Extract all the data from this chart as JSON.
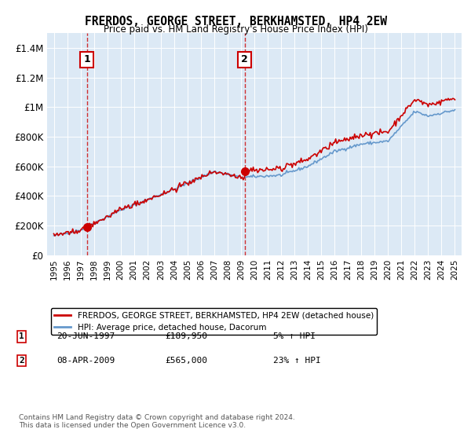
{
  "title": "FRERDOS, GEORGE STREET, BERKHAMSTED, HP4 2EW",
  "subtitle": "Price paid vs. HM Land Registry's House Price Index (HPI)",
  "background_color": "#dce9f5",
  "plot_bg_color": "#dce9f5",
  "red_line_color": "#cc0000",
  "blue_line_color": "#6699cc",
  "vline1_x": 1997.47,
  "vline2_x": 2009.27,
  "marker1_y": 189950,
  "marker2_y": 565000,
  "legend_label_red": "FRERDOS, GEORGE STREET, BERKHAMSTED, HP4 2EW (detached house)",
  "legend_label_blue": "HPI: Average price, detached house, Dacorum",
  "note1_date": "20-JUN-1997",
  "note1_price": "£189,950",
  "note1_hpi": "5% ↑ HPI",
  "note2_date": "08-APR-2009",
  "note2_price": "£565,000",
  "note2_hpi": "23% ↑ HPI",
  "footer": "Contains HM Land Registry data © Crown copyright and database right 2024.\nThis data is licensed under the Open Government Licence v3.0.",
  "ylim": [
    0,
    1500000
  ],
  "xlim": [
    1994.5,
    2025.5
  ],
  "yticks": [
    0,
    200000,
    400000,
    600000,
    800000,
    1000000,
    1200000,
    1400000
  ],
  "xticks": [
    1995,
    1996,
    1997,
    1998,
    1999,
    2000,
    2001,
    2002,
    2003,
    2004,
    2005,
    2006,
    2007,
    2008,
    2009,
    2010,
    2011,
    2012,
    2013,
    2014,
    2015,
    2016,
    2017,
    2018,
    2019,
    2020,
    2021,
    2022,
    2023,
    2024,
    2025
  ]
}
